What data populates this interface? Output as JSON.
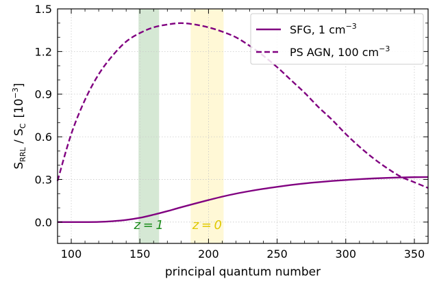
{
  "chart_data": {
    "type": "line",
    "xlabel": "principal quantum number",
    "ylabel": {
      "main": "S",
      "main_sub": "RRL",
      "mid": " / S",
      "mid_sub": "C",
      "unit": "[10",
      "unit_sup": "−3",
      "unit_end": "]"
    },
    "xlim": [
      90,
      360
    ],
    "ylim": [
      -0.15,
      1.5
    ],
    "xticks": [
      100,
      150,
      200,
      250,
      300,
      350
    ],
    "yticks": [
      0.0,
      0.3,
      0.6,
      0.9,
      1.2,
      1.5
    ],
    "ytick_labels": [
      "0.0",
      "0.3",
      "0.6",
      "0.9",
      "1.2",
      "1.5"
    ],
    "grid": true,
    "legend_position": "top-right",
    "series": [
      {
        "name": "SFG, 1 cm",
        "name_sup": "−3",
        "style": "solid",
        "color": "#800080",
        "x": [
          90,
          100,
          110,
          120,
          130,
          140,
          150,
          160,
          170,
          180,
          190,
          200,
          210,
          220,
          230,
          240,
          250,
          260,
          270,
          280,
          290,
          300,
          310,
          320,
          330,
          340,
          350,
          360
        ],
        "y": [
          0.0,
          0.0,
          0.0,
          0.001,
          0.006,
          0.015,
          0.03,
          0.052,
          0.077,
          0.104,
          0.13,
          0.155,
          0.179,
          0.2,
          0.218,
          0.234,
          0.248,
          0.261,
          0.272,
          0.281,
          0.289,
          0.296,
          0.302,
          0.307,
          0.311,
          0.314,
          0.316,
          0.317
        ]
      },
      {
        "name": "PS AGN, 100 cm",
        "name_sup": "−3",
        "style": "dashed",
        "color": "#800080",
        "x": [
          90,
          100,
          110,
          120,
          130,
          140,
          150,
          160,
          170,
          180,
          190,
          200,
          210,
          220,
          230,
          240,
          250,
          260,
          270,
          280,
          290,
          300,
          310,
          320,
          330,
          340,
          350,
          360
        ],
        "y": [
          0.29,
          0.62,
          0.86,
          1.04,
          1.17,
          1.27,
          1.33,
          1.37,
          1.39,
          1.4,
          1.39,
          1.37,
          1.34,
          1.3,
          1.24,
          1.17,
          1.09,
          1.0,
          0.91,
          0.81,
          0.72,
          0.62,
          0.53,
          0.45,
          0.38,
          0.32,
          0.28,
          0.24
        ]
      }
    ],
    "bands": [
      {
        "label_var": "z",
        "label_val": "1",
        "x_range": [
          149,
          164
        ],
        "fill": "#d5e8d4",
        "text_color": "#1a8a1a"
      },
      {
        "label_var": "z",
        "label_val": "0",
        "x_range": [
          187,
          211
        ],
        "fill": "#fff8d6",
        "text_color": "#e0c800"
      }
    ]
  }
}
